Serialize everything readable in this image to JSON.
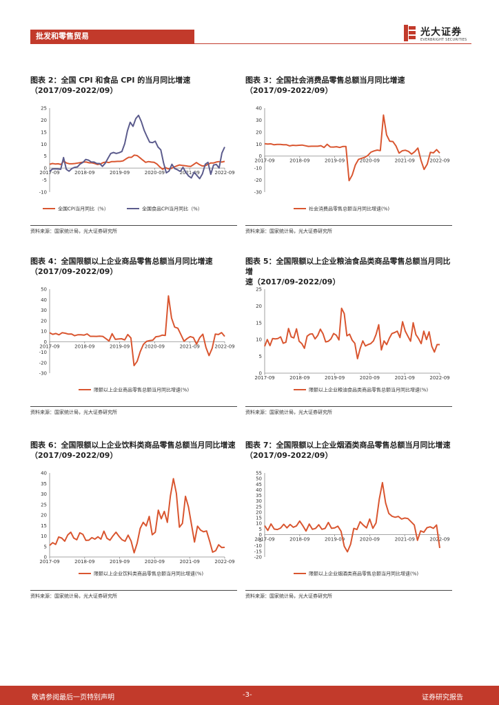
{
  "header": {
    "section_title": "批发和零售贸易"
  },
  "logo": {
    "name": "光大证券",
    "sub": "EVERBRIGHT SECURITIES",
    "brand_color": "#c23a2b"
  },
  "colors": {
    "red_line": "#d9552f",
    "purple_line": "#5b5b8c",
    "axis": "#666666"
  },
  "footer": {
    "left": "敬请参阅最后一页特别声明",
    "center": "-3-",
    "right": "证券研究报告"
  },
  "panels": [
    {
      "title": "图表 2：全国 CPI 和食品 CPI 的当月同比增速\n（2017/09-2022/09）",
      "source": "资料来源：国家统计局，光大证券研究所",
      "chart_data": {
        "type": "line",
        "x_start": "2017-09",
        "x_end": "2022-09",
        "x_ticks": [
          "2017-09",
          "2018-09",
          "2019-09",
          "2020-09",
          "2021-09",
          "2022-09"
        ],
        "ylim": [
          -10,
          25
        ],
        "yticks": [
          -10,
          -5,
          0,
          5,
          10,
          15,
          20,
          25
        ],
        "series": [
          {
            "name": "全国CPI当月同比（%）",
            "color": "#d9552f",
            "values": [
              1.6,
              1.9,
              1.7,
              1.8,
              1.5,
              2.9,
              2.1,
              1.8,
              1.8,
              1.9,
              2.1,
              2.3,
              2.5,
              2.5,
              2.2,
              2.2,
              1.9,
              1.5,
              1.7,
              2.3,
              2.5,
              2.3,
              2.7,
              2.7,
              2.8,
              2.8,
              3.0,
              3.8,
              4.5,
              4.5,
              5.4,
              5.2,
              4.3,
              3.3,
              2.4,
              2.7,
              2.5,
              2.4,
              1.7,
              0.5,
              -0.5,
              0.2,
              -0.3,
              -0.2,
              0.4,
              0.9,
              1.3,
              1.1,
              1.0,
              0.8,
              0.7,
              1.5,
              2.3,
              1.5,
              0.9,
              0.9,
              1.5,
              2.1,
              2.1,
              2.5,
              2.7,
              2.5,
              2.8
            ]
          },
          {
            "name": "全国食品CPI当月同比（%）",
            "color": "#5b5b8c",
            "values": [
              -1.4,
              -0.4,
              -0.3,
              -0.4,
              -0.5,
              4.4,
              -0.5,
              -1.3,
              -0.2,
              0.3,
              0.5,
              1.7,
              2.4,
              3.6,
              3.3,
              2.5,
              2.5,
              1.9,
              1.9,
              0.7,
              2.0,
              4.1,
              6.1,
              6.5,
              6.1,
              6.4,
              6.9,
              10.1,
              15.5,
              19.1,
              17.4,
              20.6,
              22.0,
              19.4,
              15.8,
              13.2,
              10.8,
              10.6,
              11.2,
              8.8,
              7.6,
              2.2,
              -2.0,
              -1.2,
              1.6,
              -0.2,
              -0.7,
              -1.4,
              0.3,
              -1.7,
              -3.3,
              -4.1,
              -1.7,
              -3.1,
              -4.4,
              -2.4,
              1.6,
              2.4,
              -2.6,
              1.3,
              1.5,
              0.0,
              6.3,
              8.8
            ]
          }
        ],
        "legend_position": "bottom"
      }
    },
    {
      "title": "图表 3：全国社会消费品零售总额当月同比增速\n（2017/09-2022/09）",
      "source": "资料来源：国家统计局，光大证券研究所",
      "chart_data": {
        "type": "line",
        "x_start": "2017-09",
        "x_end": "2022-09",
        "x_ticks": [
          "2017-09",
          "2018-09",
          "2019-09",
          "2020-09",
          "2021-09",
          "2022-09"
        ],
        "ylim": [
          -30,
          40
        ],
        "yticks": [
          -30,
          -20,
          -10,
          0,
          10,
          20,
          30,
          40
        ],
        "series": [
          {
            "name": "社会消费品零售总额当月同比增速(%)",
            "color": "#d9552f",
            "values": [
              10.3,
              10.0,
              10.2,
              9.4,
              9.7,
              9.7,
              9.4,
              9.4,
              8.5,
              9.0,
              8.8,
              9.0,
              9.2,
              8.6,
              8.1,
              8.2,
              8.2,
              8.2,
              8.7,
              7.2,
              9.8,
              7.6,
              7.5,
              7.8,
              7.2,
              8.0,
              8.0,
              -20.5,
              -15.8,
              -7.5,
              -2.8,
              -1.8,
              -1.1,
              0.5,
              3.3,
              4.3,
              5.0,
              4.6,
              34.2,
              17.7,
              12.4,
              12.1,
              8.5,
              2.5,
              4.4,
              4.9,
              3.9,
              1.7,
              3.7,
              6.7,
              -3.5,
              -11.1,
              -6.7,
              3.1,
              2.7,
              5.4,
              2.5
            ]
          }
        ],
        "legend_position": "bottom"
      }
    },
    {
      "title": "图表 4：全国限额以上企业商品零售总额当月同比增速\n（2017/09-2022/09）",
      "source": "资料来源：国家统计局，光大证券研究所",
      "chart_data": {
        "type": "line",
        "x_start": "2017-09",
        "x_end": "2022-09",
        "x_ticks": [
          "2017-09",
          "2018-09",
          "2019-09",
          "2020-09",
          "2021-09",
          "2022-09"
        ],
        "ylim": [
          -30,
          50
        ],
        "yticks": [
          -30,
          -20,
          -10,
          0,
          10,
          20,
          30,
          40,
          50
        ],
        "series": [
          {
            "name": "限额以上企业商品零售总额当月同比增速(%)",
            "color": "#d9552f",
            "values": [
              8.5,
              7.0,
              7.8,
              6.5,
              8.5,
              8.0,
              7.2,
              7.3,
              5.7,
              6.5,
              6.6,
              6.2,
              7.4,
              5.1,
              5.1,
              5.0,
              5.3,
              5.0,
              2.9,
              0.6,
              7.6,
              2.2,
              2.5,
              2.8,
              1.7,
              6.8,
              3.6,
              -22.8,
              -18.7,
              -9.5,
              -2.6,
              0.2,
              1.0,
              1.4,
              4.7,
              5.1,
              6.2,
              5.9,
              43.6,
              22.5,
              13.9,
              12.8,
              6.7,
              0.4,
              3.0,
              4.8,
              3.9,
              -2.4,
              3.7,
              7.1,
              -5.5,
              -13.3,
              -6.2,
              7.2,
              6.8,
              8.6,
              5.0
            ]
          }
        ],
        "legend_position": "bottom"
      }
    },
    {
      "title": "图表 5：全国限额以上企业粮油食品类商品零售总额当月同比增\n速（2017/09-2022/09）",
      "source": "资料来源：国家统计局，光大证券研究所",
      "chart_data": {
        "type": "line",
        "x_start": "2017-09",
        "x_end": "2022-09",
        "x_ticks": [
          "2017-09",
          "2018-09",
          "2019-09",
          "2020-09",
          "2021-09",
          "2022-09"
        ],
        "ylim": [
          0,
          25
        ],
        "yticks": [
          0,
          5,
          10,
          15,
          20,
          25
        ],
        "series": [
          {
            "name": "限额以上企业粮油食品类商品零售总额当月同比增速(%)",
            "color": "#d9552f",
            "values": [
              8.0,
              10.0,
              8.2,
              10.3,
              10.2,
              10.3,
              10.8,
              8.9,
              9.2,
              13.3,
              10.8,
              10.5,
              13.2,
              9.5,
              8.8,
              7.4,
              11.0,
              11.6,
              11.7,
              10.2,
              11.2,
              13.1,
              11.7,
              9.3,
              9.5,
              10.2,
              11.8,
              11.3,
              9.9,
              19.3,
              17.7,
              11.1,
              11.6,
              9.8,
              8.9,
              4.3,
              7.3,
              9.6,
              8.1,
              8.5,
              8.8,
              9.6,
              11.5,
              14.4,
              6.9,
              9.6,
              8.5,
              10.4,
              11.8,
              12.1,
              12.5,
              10.6,
              15.3,
              12.5,
              11.0,
              9.5,
              15.0,
              11.5,
              10.3,
              8.8,
              12.5,
              10.0,
              12.3,
              8.0,
              6.3,
              8.5,
              8.5
            ]
          }
        ],
        "legend_position": "bottom"
      }
    },
    {
      "title": "图表 6：全国限额以上企业饮料类商品零售总额当月同比增速\n（2017/09-2022/09）",
      "source": "资料来源：国家统计局，光大证券研究所",
      "chart_data": {
        "type": "line",
        "x_start": "2017-09",
        "x_end": "2022-09",
        "x_ticks": [
          "2017-09",
          "2018-09",
          "2019-09",
          "2020-09",
          "2021-09",
          "2022-09"
        ],
        "ylim": [
          0,
          40
        ],
        "yticks": [
          0,
          5,
          10,
          15,
          20,
          25,
          30,
          35,
          40
        ],
        "series": [
          {
            "name": "限额以上企业饮料类商品零售总额当月同比增速(%)",
            "color": "#d9552f",
            "values": [
              5.5,
              6.8,
              6.0,
              9.5,
              9.0,
              7.5,
              10.5,
              11.8,
              9.0,
              8.2,
              11.5,
              10.8,
              7.9,
              8.0,
              9.2,
              8.5,
              9.6,
              8.5,
              12.3,
              8.9,
              8.0,
              10.1,
              11.8,
              9.8,
              8.2,
              7.5,
              10.4,
              7.6,
              2.0,
              6.6,
              13.6,
              16.5,
              14.8,
              19.3,
              10.6,
              11.8,
              22.3,
              18.2,
              21.7,
              16.5,
              29.0,
              37.3,
              30.3,
              14.2,
              16.0,
              28.9,
              23.9,
              15.5,
              7.1,
              14.7,
              12.8,
              12.0,
              12.4,
              7.6,
              2.3,
              3.0,
              5.8,
              4.5,
              4.6
            ]
          }
        ],
        "legend_position": "bottom"
      }
    },
    {
      "title": "图表 7：全国限额以上企业烟酒类商品零售总额当月同比增速\n（2017/09-2022/09）",
      "source": "资料来源：国家统计局，光大证券研究所",
      "chart_data": {
        "type": "line",
        "x_start": "2017-09",
        "x_end": "2022-09",
        "x_ticks": [
          "2017-09",
          "2018-09",
          "2019-09",
          "2020-09",
          "2021-09",
          "2022-09"
        ],
        "ylim": [
          -20,
          55
        ],
        "yticks": [
          -20,
          -15,
          -10,
          -5,
          0,
          5,
          10,
          15,
          20,
          25,
          30,
          35,
          40,
          45,
          50,
          55
        ],
        "series": [
          {
            "name": "限额以上企业烟酒类商品零售总额当月同比增速(%)",
            "color": "#d9552f",
            "values": [
              8.0,
              3.7,
              9.5,
              4.9,
              4.5,
              5.8,
              9.2,
              6.0,
              9.0,
              6.5,
              7.8,
              12.1,
              7.9,
              3.2,
              9.4,
              4.7,
              5.6,
              8.8,
              4.7,
              5.5,
              10.8,
              5.6,
              6.0,
              7.5,
              3.0,
              -10.5,
              -15.4,
              -8.6,
              5.5,
              4.5,
              11.5,
              8.4,
              6.0,
              13.9,
              5.6,
              10.4,
              31.7,
              46.4,
              28.2,
              18.9,
              16.4,
              15.5,
              16.2,
              13.9,
              14.8,
              14.3,
              11.5,
              8.5,
              -5.1,
              3.3,
              2.1,
              6.1,
              6.9,
              5.6,
              8.5,
              -12.0
            ]
          }
        ],
        "legend_position": "bottom"
      }
    }
  ]
}
